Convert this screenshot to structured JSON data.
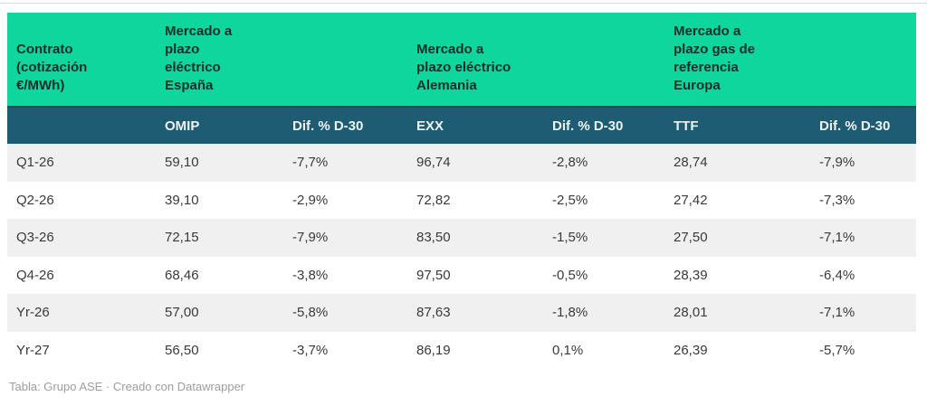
{
  "colors": {
    "group_header_bg": "#0ed69d",
    "group_header_text": "#05302a",
    "sub_header_bg": "#1e5c73",
    "sub_header_text": "#eef3f5",
    "row_stripe_bg": "#f0f0f0",
    "row_white_bg": "#ffffff",
    "data_text": "#3a3a3a",
    "footer_text": "#9d9d9d"
  },
  "header": {
    "groups": {
      "contract": "Contrato\n(cotización\n€/MWh)",
      "spain": "Mercado a\nplazo\neléctrico\nEspaña",
      "germany": "Mercado a\nplazo eléctrico\nAlemania",
      "europe": "Mercado a\nplazo gas de\nreferencia\nEuropa"
    },
    "sub": [
      "",
      "OMIP",
      "Dif. % D-30",
      "EXX",
      "Dif. % D-30",
      "TTF",
      "Dif. % D-30"
    ]
  },
  "chart_data": {
    "type": "table",
    "title": "",
    "column_groups": [
      "Contrato (cotización €/MWh)",
      "Mercado a plazo eléctrico España",
      "Mercado a plazo eléctrico Alemania",
      "Mercado a plazo gas de referencia Europa"
    ],
    "columns": [
      "Contrato",
      "OMIP",
      "Dif. % D-30",
      "EXX",
      "Dif. % D-30",
      "TTF",
      "Dif. % D-30"
    ],
    "rows": [
      [
        "Q1-26",
        "59,10",
        "-7,7%",
        "96,74",
        "-2,8%",
        "28,74",
        "-7,9%"
      ],
      [
        "Q2-26",
        "39,10",
        "-2,9%",
        "72,82",
        "-2,5%",
        "27,42",
        "-7,3%"
      ],
      [
        "Q3-26",
        "72,15",
        "-7,9%",
        "83,50",
        "-1,5%",
        "27,50",
        "-7,1%"
      ],
      [
        "Q4-26",
        "68,46",
        "-3,8%",
        "97,50",
        "-0,5%",
        "28,39",
        "-6,4%"
      ],
      [
        "Yr-26",
        "57,00",
        "-5,8%",
        "87,63",
        "-1,8%",
        "28,01",
        "-7,1%"
      ],
      [
        "Yr-27",
        "56,50",
        "-3,7%",
        "86,19",
        "0,1%",
        "26,39",
        "-5,7%"
      ]
    ],
    "legend": null,
    "footer": "Tabla: Grupo ASE · Creado con Datawrapper"
  },
  "footer": {
    "text": "Tabla: Grupo ASE · Creado con Datawrapper"
  }
}
